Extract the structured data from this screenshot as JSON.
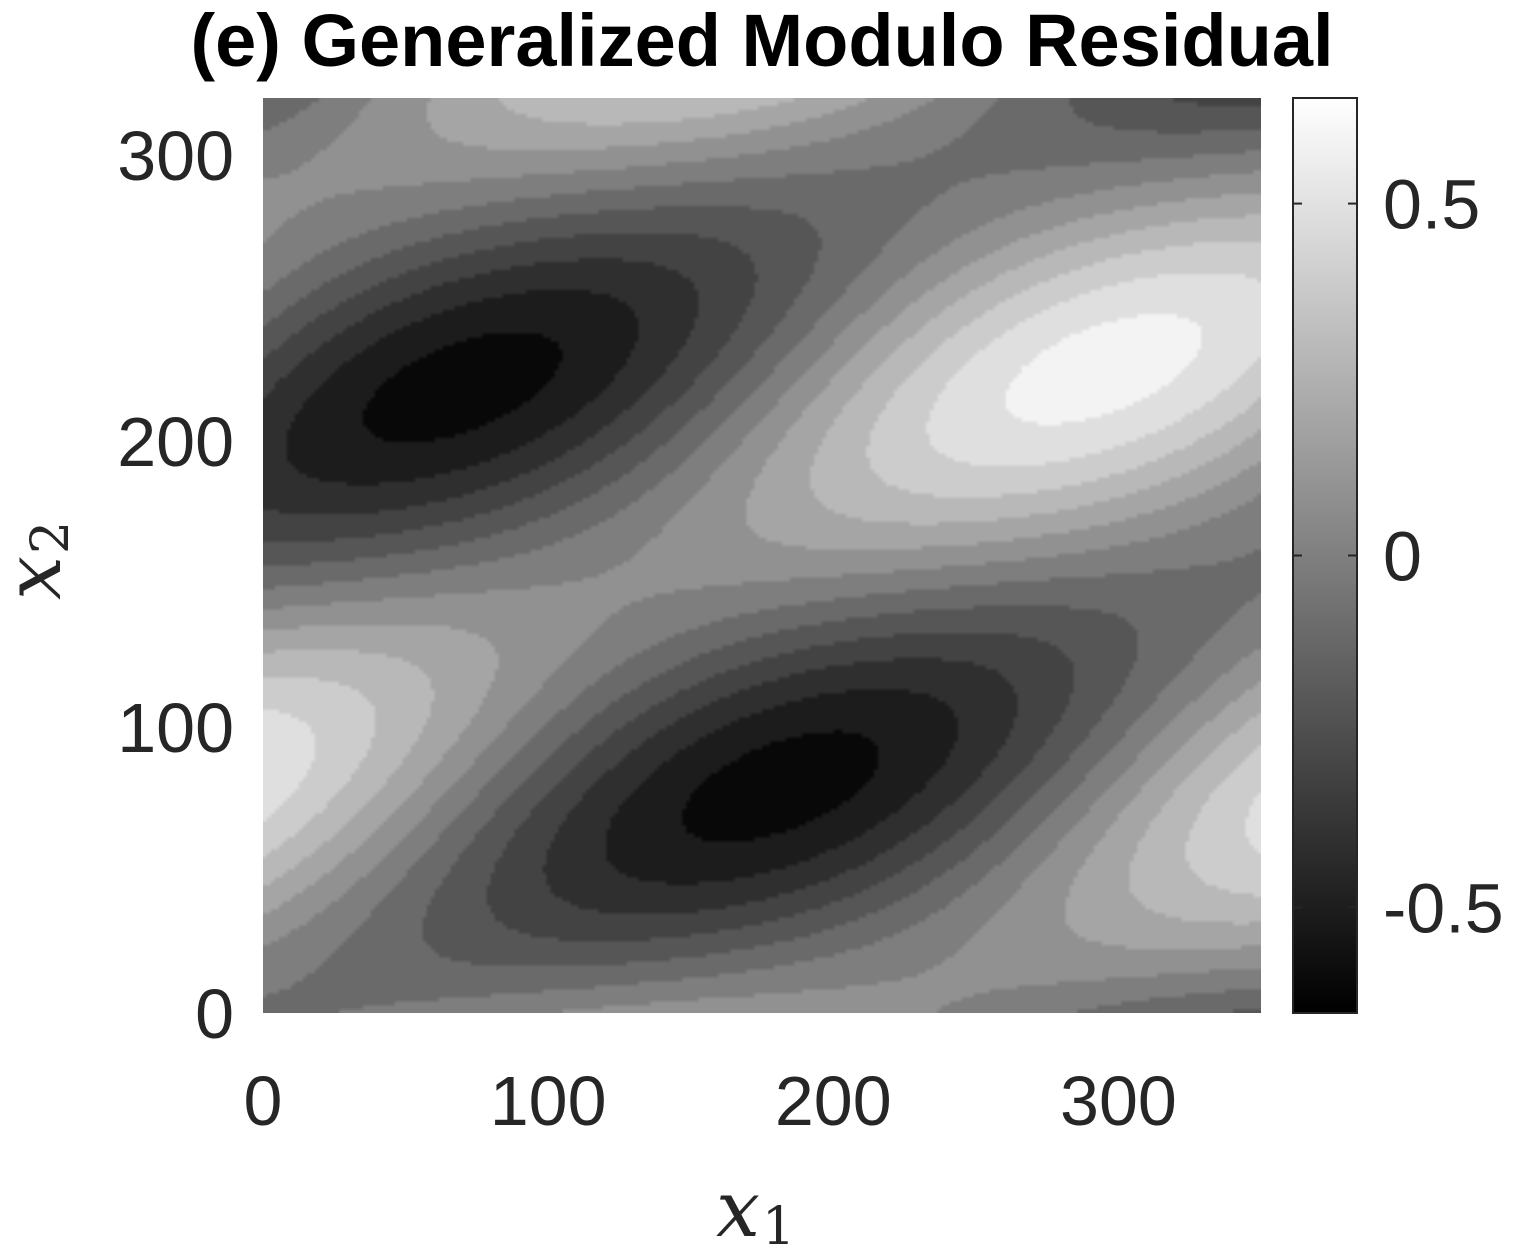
{
  "chart_data": {
    "type": "heatmap",
    "title": "(e) Generalized Modulo Residual",
    "xlabel": "x",
    "xlabel_sub": "1",
    "ylabel": "x",
    "ylabel_sub": "2",
    "xlim": [
      0,
      350
    ],
    "ylim": [
      0,
      320
    ],
    "xticks": [
      0,
      100,
      200,
      300
    ],
    "yticks": [
      0,
      100,
      200,
      300
    ],
    "colormap": "gray",
    "colorbar": {
      "range": [
        -0.65,
        0.65
      ],
      "ticks": [
        -0.5,
        0,
        0.5
      ],
      "tick_labels": [
        "-0.5",
        "0",
        "0.5"
      ]
    },
    "surface": "generalized modulo residual over x1 in [0, 350], x2 in [0, 320]; quantized gray levels in [-0.65, 0.65] forming diagonal bands",
    "grid": false
  }
}
